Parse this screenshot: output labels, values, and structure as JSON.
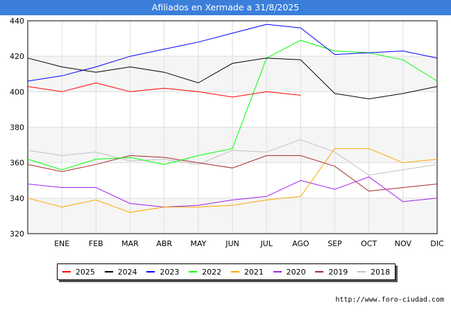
{
  "chart_data": {
    "type": "line",
    "title": "Afiliados en Xermade a 31/8/2025",
    "categories": [
      "",
      "ENE",
      "FEB",
      "MAR",
      "ABR",
      "MAY",
      "JUN",
      "JUL",
      "AGO",
      "SEP",
      "OCT",
      "NOV",
      "DIC"
    ],
    "xlabel": "",
    "ylabel": "",
    "ylim": [
      320,
      440
    ],
    "yticks": [
      320,
      340,
      360,
      380,
      400,
      420,
      440
    ],
    "grid": true,
    "legend_position": "bottom",
    "series": [
      {
        "name": "2025",
        "color": "#ff0000",
        "values": [
          403,
          400,
          405,
          400,
          402,
          400,
          397,
          400,
          398,
          null,
          null,
          null,
          null
        ]
      },
      {
        "name": "2024",
        "color": "#000000",
        "values": [
          419,
          414,
          411,
          414,
          411,
          405,
          416,
          419,
          418,
          399,
          396,
          399,
          403
        ]
      },
      {
        "name": "2023",
        "color": "#0000ff",
        "values": [
          406,
          409,
          414,
          420,
          424,
          428,
          433,
          438,
          436,
          421,
          422,
          423,
          419
        ]
      },
      {
        "name": "2022",
        "color": "#00ff00",
        "values": [
          362,
          356,
          362,
          363,
          359,
          364,
          368,
          419,
          429,
          423,
          422,
          418,
          406
        ]
      },
      {
        "name": "2021",
        "color": "#ffa500",
        "values": [
          340,
          335,
          339,
          332,
          335,
          335,
          336,
          339,
          341,
          368,
          368,
          360,
          362
        ]
      },
      {
        "name": "2020",
        "color": "#a020f0",
        "values": [
          348,
          346,
          346,
          337,
          335,
          336,
          339,
          341,
          350,
          345,
          352,
          338,
          340
        ]
      },
      {
        "name": "2019",
        "color": "#a52a2a",
        "values": [
          359,
          355,
          359,
          364,
          363,
          360,
          357,
          364,
          364,
          358,
          344,
          346,
          348
        ]
      },
      {
        "name": "2018",
        "color": "#c0c0c0",
        "values": [
          367,
          364,
          366,
          361,
          362,
          359,
          367,
          366,
          373,
          366,
          353,
          356,
          359
        ]
      }
    ]
  },
  "footer": {
    "url": "http://www.foro-ciudad.com"
  }
}
